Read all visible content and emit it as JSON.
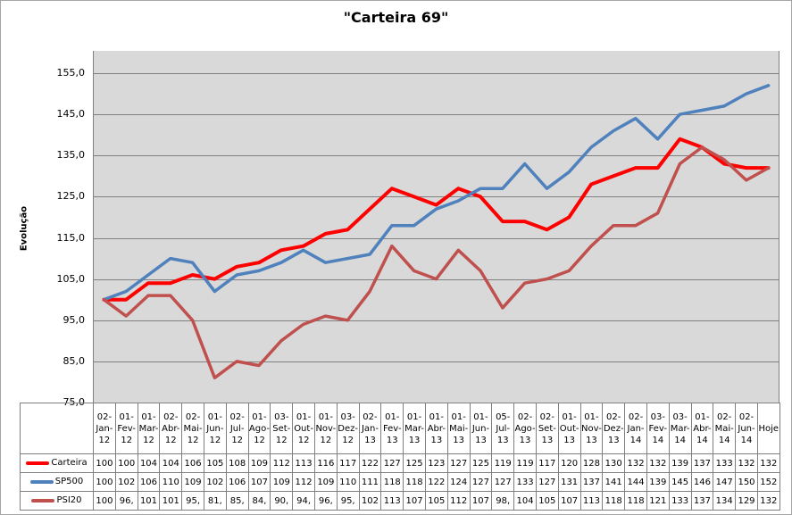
{
  "window": {
    "background": "#ffffff",
    "border_color": "#a6a6a6"
  },
  "chart_data": {
    "type": "line",
    "title": "\"Carteira 69\"",
    "ylabel": "Evolução",
    "ylim": [
      75,
      155
    ],
    "ytick_values": [
      155,
      145,
      135,
      125,
      115,
      105,
      95,
      85,
      75
    ],
    "ytick_labels": [
      "155,0",
      "145,0",
      "135,0",
      "125,0",
      "115,0",
      "105,0",
      "95,0",
      "85,0",
      "75,0"
    ],
    "grid": true,
    "plot_bg": "#d9d9d9",
    "gridline_color": "#808080",
    "axis_text_color": "#000000",
    "legend_position": "data-table-left",
    "data_table": true,
    "categories": [
      "02-Jan-12",
      "01-Fev-12",
      "01-Mar-12",
      "02-Abr-12",
      "02-Mai-12",
      "01-Jun-12",
      "02-Jul-12",
      "01-Ago-12",
      "03-Set-12",
      "01-Out-12",
      "01-Nov-12",
      "03-Dez-12",
      "02-Jan-13",
      "01-Fev-13",
      "01-Mar-13",
      "01-Abr-13",
      "01-Mai-13",
      "01-Jun-13",
      "05-Jul-13",
      "02-Ago-13",
      "02-Set-13",
      "01-Out-13",
      "01-Nov-13",
      "02-Dez-13",
      "02-Jan-14",
      "03-Fev-14",
      "03-Mar-14",
      "01-Abr-14",
      "02-Mai-14",
      "02-Jun-14",
      "Hoje"
    ],
    "series": [
      {
        "name": "Carteira",
        "color": "#ff0000",
        "line_width": 4,
        "values": [
          100,
          100,
          104,
          104,
          106,
          105,
          108,
          109,
          112,
          113,
          116,
          117,
          122,
          127,
          125,
          123,
          127,
          125,
          119,
          119,
          117,
          120,
          128,
          130,
          132,
          132,
          139,
          137,
          133,
          132,
          132
        ],
        "display": [
          "100",
          "100",
          "104",
          "104",
          "106",
          "105",
          "108",
          "109",
          "112",
          "113",
          "116",
          "117",
          "122",
          "127",
          "125",
          "123",
          "127",
          "125",
          "119",
          "119",
          "117",
          "120",
          "128",
          "130",
          "132",
          "132",
          "139",
          "137",
          "133",
          "132",
          "132"
        ]
      },
      {
        "name": "SP500",
        "color": "#4f81bd",
        "line_width": 3.5,
        "values": [
          100,
          102,
          106,
          110,
          109,
          102,
          106,
          107,
          109,
          112,
          109,
          110,
          111,
          118,
          118,
          122,
          124,
          127,
          127,
          133,
          127,
          131,
          137,
          141,
          144,
          139,
          145,
          146,
          147,
          150,
          152
        ],
        "display": [
          "100",
          "102",
          "106",
          "110",
          "109",
          "102",
          "106",
          "107",
          "109",
          "112",
          "109",
          "110",
          "111",
          "118",
          "118",
          "122",
          "124",
          "127",
          "127",
          "133",
          "127",
          "131",
          "137",
          "141",
          "144",
          "139",
          "145",
          "146",
          "147",
          "150",
          "152"
        ]
      },
      {
        "name": "PSI20",
        "color": "#c0504d",
        "line_width": 3.5,
        "values": [
          100,
          96,
          101,
          101,
          95,
          81,
          85,
          84,
          90,
          94,
          96,
          95,
          102,
          113,
          107,
          105,
          112,
          107,
          98,
          104,
          105,
          107,
          113,
          118,
          118,
          121,
          133,
          137,
          134,
          129,
          132
        ],
        "display": [
          "100",
          "96,",
          "101",
          "101",
          "95,",
          "81,",
          "85,",
          "84,",
          "90,",
          "94,",
          "96,",
          "95,",
          "102",
          "113",
          "107",
          "105",
          "112",
          "107",
          "98,",
          "104",
          "105",
          "107",
          "113",
          "118",
          "118",
          "121",
          "133",
          "137",
          "134",
          "129",
          "132"
        ]
      }
    ]
  }
}
